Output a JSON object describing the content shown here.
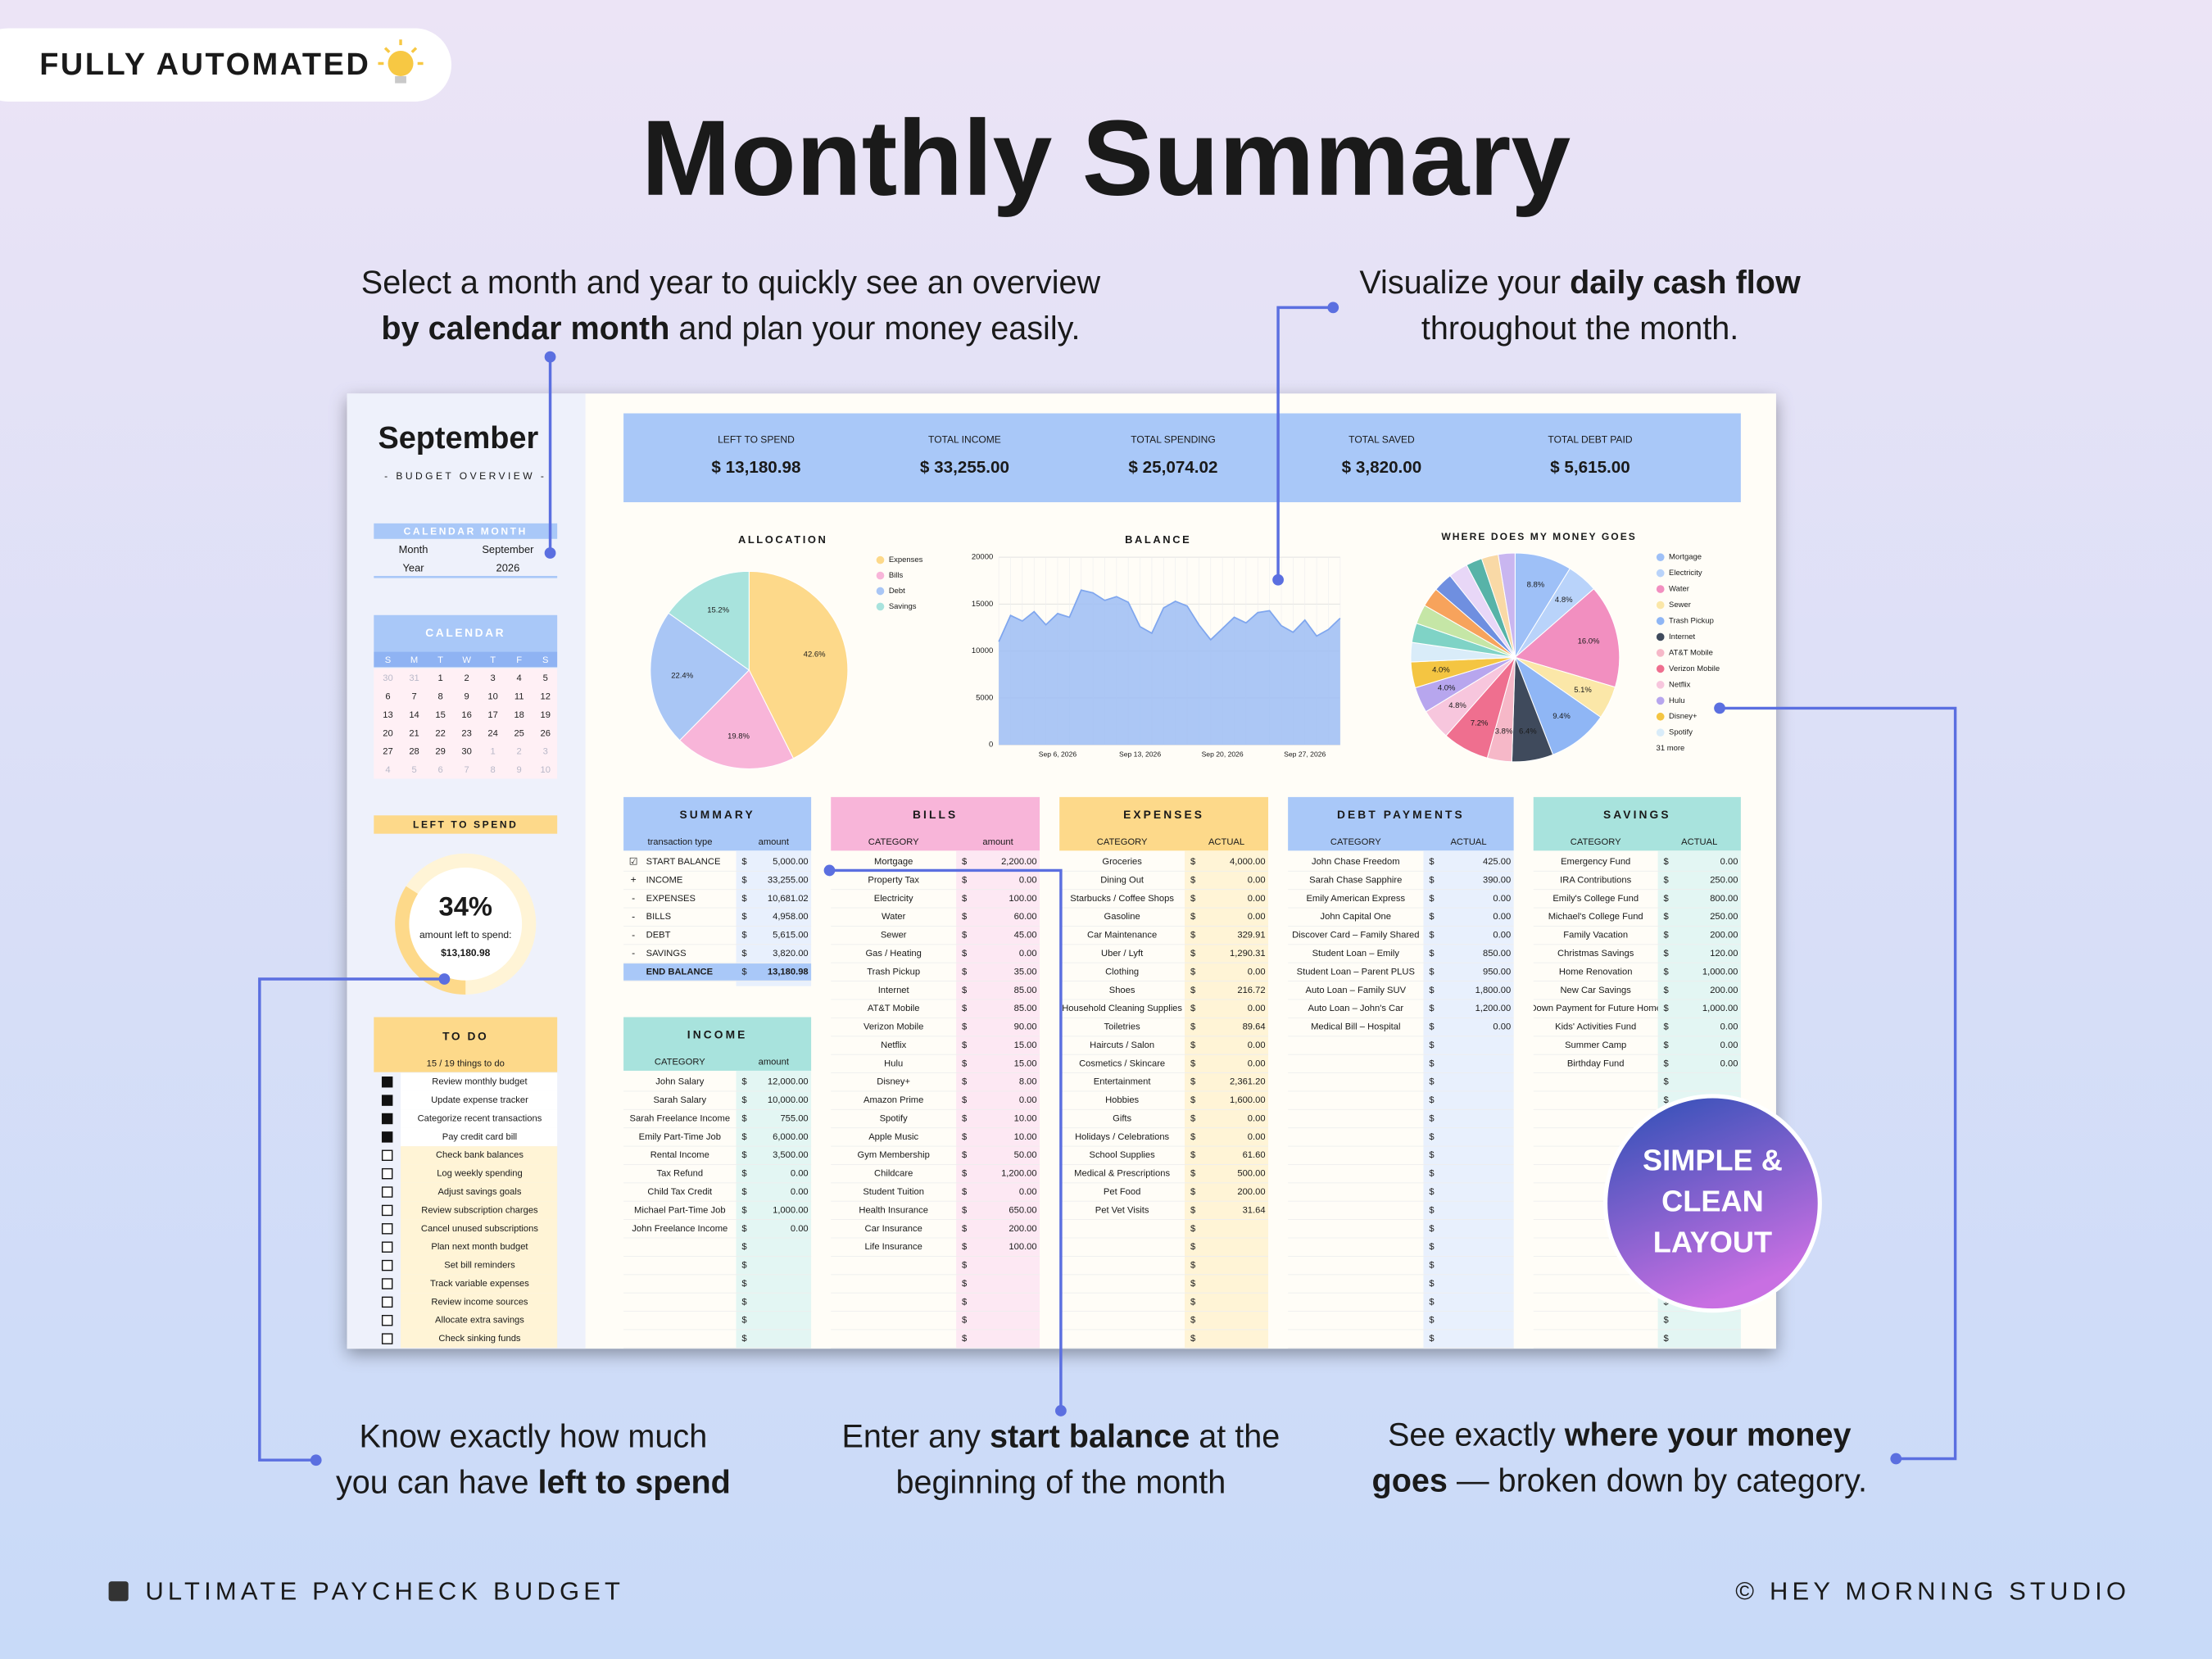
{
  "badge": "FULLY AUTOMATED",
  "title": "Monthly Summary",
  "callouts": [
    {
      "lines": [
        [
          {
            "t": "Select a month and year to quickly see an overview"
          }
        ],
        [
          {
            "t": "by calendar month",
            "b": true
          },
          {
            "t": " and plan your money easily."
          }
        ]
      ]
    },
    {
      "lines": [
        [
          {
            "t": "Visualize your "
          },
          {
            "t": "daily cash flow",
            "b": true
          }
        ],
        [
          {
            "t": "throughout the month."
          }
        ]
      ]
    },
    {
      "lines": [
        [
          {
            "t": "Know exactly how much"
          }
        ],
        [
          {
            "t": "you can have "
          },
          {
            "t": "left to spend",
            "b": true
          }
        ]
      ]
    },
    {
      "lines": [
        [
          {
            "t": "Enter any "
          },
          {
            "t": "start balance",
            "b": true
          },
          {
            "t": " at the"
          }
        ],
        [
          {
            "t": "beginning of the month"
          }
        ]
      ]
    },
    {
      "lines": [
        [
          {
            "t": "See exactly "
          },
          {
            "t": "where your money",
            "b": true
          }
        ],
        [
          {
            "t": "goes",
            "b": true
          },
          {
            "t": " — broken down by category."
          }
        ]
      ]
    }
  ],
  "footer_left": "ULTIMATE PAYCHECK BUDGET",
  "footer_right": "© HEY MORNING STUDIO",
  "sticker": [
    "SIMPLE &",
    "CLEAN",
    "LAYOUT"
  ],
  "sheet": {
    "month_title": "September",
    "subtitle": "- BUDGET OVERVIEW -",
    "calendar_month": {
      "header": "CALENDAR MONTH",
      "rows": [
        [
          "Month",
          "September"
        ],
        [
          "Year",
          "2026"
        ]
      ]
    },
    "calendar": {
      "header": "CALENDAR",
      "weekdays": [
        "S",
        "M",
        "T",
        "W",
        "T",
        "F",
        "S"
      ],
      "weeks": [
        [
          30,
          31,
          1,
          2,
          3,
          4,
          5
        ],
        [
          6,
          7,
          8,
          9,
          10,
          11,
          12
        ],
        [
          13,
          14,
          15,
          16,
          17,
          18,
          19
        ],
        [
          20,
          21,
          22,
          23,
          24,
          25,
          26
        ],
        [
          27,
          28,
          29,
          30,
          1,
          2,
          3
        ],
        [
          4,
          5,
          6,
          7,
          8,
          9,
          10
        ]
      ]
    },
    "left_to_spend": {
      "header": "LEFT TO SPEND",
      "value": 34,
      "value_label": "34%",
      "caption": "amount left to spend:",
      "amount": "$13,180.98"
    },
    "todo": {
      "header": "TO DO",
      "status": "15 / 19 things to do",
      "items": [
        {
          "text": "Review monthly budget",
          "done": true
        },
        {
          "text": "Update expense tracker",
          "done": true
        },
        {
          "text": "Categorize recent transactions",
          "done": true
        },
        {
          "text": "Pay credit card bill",
          "done": true
        },
        {
          "text": "Check bank balances",
          "done": false
        },
        {
          "text": "Log weekly spending",
          "done": false
        },
        {
          "text": "Adjust savings goals",
          "done": false
        },
        {
          "text": "Review subscription charges",
          "done": false
        },
        {
          "text": "Cancel unused subscriptions",
          "done": false
        },
        {
          "text": "Plan next month budget",
          "done": false
        },
        {
          "text": "Set bill reminders",
          "done": false
        },
        {
          "text": "Track variable expenses",
          "done": false
        },
        {
          "text": "Review income sources",
          "done": false
        },
        {
          "text": "Allocate extra savings",
          "done": false
        },
        {
          "text": "Check sinking funds",
          "done": false
        }
      ]
    },
    "kpis": [
      {
        "label": "LEFT TO SPEND",
        "value": "$ 13,180.98"
      },
      {
        "label": "TOTAL INCOME",
        "value": "$ 33,255.00"
      },
      {
        "label": "TOTAL SPENDING",
        "value": "$ 25,074.02"
      },
      {
        "label": "TOTAL SAVED",
        "value": "$ 3,820.00"
      },
      {
        "label": "TOTAL DEBT PAID",
        "value": "$ 5,615.00"
      }
    ],
    "allocation": {
      "type": "pie",
      "title": "ALLOCATION",
      "categories": [
        "Expenses",
        "Bills",
        "Debt",
        "Savings"
      ],
      "values": [
        42.6,
        19.8,
        22.4,
        15.2
      ],
      "value_labels": [
        "42.6%",
        "19.8%",
        "22.4%",
        "15.2%"
      ],
      "colors": [
        "#fdd98a",
        "#f8b5d9",
        "#a9c6f5",
        "#a8e3dd"
      ]
    },
    "balance": {
      "type": "area",
      "title": "BALANCE",
      "color": "#9dbdf5",
      "categories": [
        null,
        null,
        null,
        null,
        null,
        "Sep 6, 2026",
        null,
        null,
        null,
        null,
        null,
        null,
        "Sep 13, 2026",
        null,
        null,
        null,
        null,
        null,
        null,
        "Sep 20, 2026",
        null,
        null,
        null,
        null,
        null,
        null,
        "Sep 27, 2026",
        null,
        null,
        null
      ],
      "values": [
        11000,
        13800,
        13200,
        14200,
        12800,
        14000,
        13600,
        16500,
        16200,
        15400,
        15800,
        15200,
        12600,
        11900,
        14600,
        15300,
        14800,
        12800,
        11200,
        12400,
        13600,
        13000,
        14100,
        14300,
        12700,
        12000,
        13300,
        11600,
        12300,
        13500
      ],
      "ylim": [
        0,
        20000
      ],
      "yticks": [
        0,
        5000,
        10000,
        15000,
        20000
      ],
      "grid": true
    },
    "money": {
      "type": "pie",
      "title": "WHERE DOES MY MONEY GOES",
      "categories": [
        "Mortgage",
        "Electricity",
        "Water",
        "Sewer",
        "Trash Pickup",
        "Internet",
        "AT&T Mobile",
        "Verizon Mobile",
        "Netflix",
        "Hulu",
        "Disney+",
        "Spotify",
        null,
        null,
        null,
        null,
        null,
        null,
        null,
        null
      ],
      "values": [
        8.8,
        4.8,
        16.0,
        5.1,
        9.4,
        6.4,
        3.8,
        7.2,
        4.8,
        4.0,
        4.0,
        3,
        3,
        3,
        3,
        3,
        3,
        2.5,
        2.6,
        2.6
      ],
      "value_labels": [
        "8.8%",
        "4.8%",
        "16.0%",
        "5.1%",
        "9.4%",
        "6.4%",
        "3.8%",
        "7.2%",
        "4.8%",
        "4.0%",
        "4.0%",
        null,
        null,
        null,
        null,
        null,
        null,
        null,
        null,
        null
      ],
      "colors": [
        "#9ec0f7",
        "#b9d3fa",
        "#f28fc0",
        "#fbe7a8",
        "#8fb6f5",
        "#3f4a5c",
        "#f6b8c8",
        "#ef6f8f",
        "#f7c6dd",
        "#b7a6ee",
        "#f4c542",
        "#d9ecf9",
        "#7fd3c6",
        "#c5e6a6",
        "#f7a35c",
        "#6f8fe0",
        "#e8d7f7",
        "#57b3a8",
        "#f9d9a6",
        "#c9b6f0"
      ],
      "more": "31 more"
    },
    "tables": {
      "summary": {
        "header": "SUMMARY",
        "columns": [
          "transaction type",
          "amount"
        ],
        "currency": "$",
        "rows": [
          {
            "mark": "☑",
            "name": "START BALANCE",
            "amount": "5,000.00"
          },
          {
            "mark": "+",
            "name": "INCOME",
            "amount": "33,255.00"
          },
          {
            "mark": "-",
            "name": "EXPENSES",
            "amount": "10,681.02"
          },
          {
            "mark": "-",
            "name": "BILLS",
            "amount": "4,958.00"
          },
          {
            "mark": "-",
            "name": "DEBT",
            "amount": "5,615.00"
          },
          {
            "mark": "-",
            "name": "SAVINGS",
            "amount": "3,820.00"
          },
          {
            "name": "END BALANCE",
            "amount": "13,180.98"
          }
        ]
      },
      "bills": {
        "header": "BILLS",
        "columns": [
          "CATEGORY",
          "amount"
        ],
        "currency": "$",
        "rows": [
          {
            "name": "Mortgage",
            "amount": "2,200.00"
          },
          {
            "name": "Property Tax",
            "amount": "0.00"
          },
          {
            "name": "Electricity",
            "amount": "100.00"
          },
          {
            "name": "Water",
            "amount": "60.00"
          },
          {
            "name": "Sewer",
            "amount": "45.00"
          },
          {
            "name": "Gas / Heating",
            "amount": "0.00"
          },
          {
            "name": "Trash Pickup",
            "amount": "35.00"
          },
          {
            "name": "Internet",
            "amount": "85.00"
          },
          {
            "name": "AT&T Mobile",
            "amount": "85.00"
          },
          {
            "name": "Verizon Mobile",
            "amount": "90.00"
          },
          {
            "name": "Netflix",
            "amount": "15.00"
          },
          {
            "name": "Hulu",
            "amount": "15.00"
          },
          {
            "name": "Disney+",
            "amount": "8.00"
          },
          {
            "name": "Amazon Prime",
            "amount": "0.00"
          },
          {
            "name": "Spotify",
            "amount": "10.00"
          },
          {
            "name": "Apple Music",
            "amount": "10.00"
          },
          {
            "name": "Gym Membership",
            "amount": "50.00"
          },
          {
            "name": "Childcare",
            "amount": "1,200.00"
          },
          {
            "name": "Student Tuition",
            "amount": "0.00"
          },
          {
            "name": "Health Insurance",
            "amount": "650.00"
          },
          {
            "name": "Car Insurance",
            "amount": "200.00"
          },
          {
            "name": "Life Insurance",
            "amount": "100.00"
          }
        ]
      },
      "expenses": {
        "header": "EXPENSES",
        "columns": [
          "CATEGORY",
          "ACTUAL"
        ],
        "currency": "$",
        "rows": [
          {
            "name": "Groceries",
            "amount": "4,000.00"
          },
          {
            "name": "Dining Out",
            "amount": "0.00"
          },
          {
            "name": "Starbucks / Coffee Shops",
            "amount": "0.00"
          },
          {
            "name": "Gasoline",
            "amount": "0.00"
          },
          {
            "name": "Car Maintenance",
            "amount": "329.91"
          },
          {
            "name": "Uber / Lyft",
            "amount": "1,290.31"
          },
          {
            "name": "Clothing",
            "amount": "0.00"
          },
          {
            "name": "Shoes",
            "amount": "216.72"
          },
          {
            "name": "Household Cleaning Supplies",
            "amount": "0.00"
          },
          {
            "name": "Toiletries",
            "amount": "89.64"
          },
          {
            "name": "Haircuts / Salon",
            "amount": "0.00"
          },
          {
            "name": "Cosmetics / Skincare",
            "amount": "0.00"
          },
          {
            "name": "Entertainment",
            "amount": "2,361.20"
          },
          {
            "name": "Hobbies",
            "amount": "1,600.00"
          },
          {
            "name": "Gifts",
            "amount": "0.00"
          },
          {
            "name": "Holidays / Celebrations",
            "amount": "0.00"
          },
          {
            "name": "School Supplies",
            "amount": "61.60"
          },
          {
            "name": "Medical & Prescriptions",
            "amount": "500.00"
          },
          {
            "name": "Pet Food",
            "amount": "200.00"
          },
          {
            "name": "Pet Vet Visits",
            "amount": "31.64"
          }
        ]
      },
      "debt": {
        "header": "DEBT PAYMENTS",
        "columns": [
          "CATEGORY",
          "ACTUAL"
        ],
        "currency": "$",
        "rows": [
          {
            "name": "John Chase Freedom",
            "amount": "425.00"
          },
          {
            "name": "Sarah Chase Sapphire",
            "amount": "390.00"
          },
          {
            "name": "Emily American Express",
            "amount": "0.00"
          },
          {
            "name": "John Capital One",
            "amount": "0.00"
          },
          {
            "name": "Discover Card – Family Shared",
            "amount": "0.00"
          },
          {
            "name": "Student Loan – Emily",
            "amount": "850.00"
          },
          {
            "name": "Student Loan – Parent PLUS",
            "amount": "950.00"
          },
          {
            "name": "Auto Loan – Family SUV",
            "amount": "1,800.00"
          },
          {
            "name": "Auto Loan – John's Car",
            "amount": "1,200.00"
          },
          {
            "name": "Medical Bill – Hospital",
            "amount": "0.00"
          }
        ]
      },
      "savings": {
        "header": "SAVINGS",
        "columns": [
          "CATEGORY",
          "ACTUAL"
        ],
        "currency": "$",
        "rows": [
          {
            "name": "Emergency Fund",
            "amount": "0.00"
          },
          {
            "name": "IRA Contributions",
            "amount": "250.00"
          },
          {
            "name": "Emily's College Fund",
            "amount": "800.00"
          },
          {
            "name": "Michael's College Fund",
            "amount": "250.00"
          },
          {
            "name": "Family Vacation",
            "amount": "200.00"
          },
          {
            "name": "Christmas Savings",
            "amount": "120.00"
          },
          {
            "name": "Home Renovation",
            "amount": "1,000.00"
          },
          {
            "name": "New Car Savings",
            "amount": "200.00"
          },
          {
            "name": "Down Payment for Future Home",
            "amount": "1,000.00"
          },
          {
            "name": "Kids' Activities Fund",
            "amount": "0.00"
          },
          {
            "name": "Summer Camp",
            "amount": "0.00"
          },
          {
            "name": "Birthday Fund",
            "amount": "0.00"
          }
        ]
      },
      "income": {
        "header": "INCOME",
        "columns": [
          "CATEGORY",
          "amount"
        ],
        "currency": "$",
        "rows": [
          {
            "name": "John Salary",
            "amount": "12,000.00"
          },
          {
            "name": "Sarah Salary",
            "amount": "10,000.00"
          },
          {
            "name": "Sarah Freelance Income",
            "amount": "755.00"
          },
          {
            "name": "Emily Part-Time Job",
            "amount": "6,000.00"
          },
          {
            "name": "Rental Income",
            "amount": "3,500.00"
          },
          {
            "name": "Tax Refund",
            "amount": "0.00"
          },
          {
            "name": "Child Tax Credit",
            "amount": "0.00"
          },
          {
            "name": "Michael Part-Time Job",
            "amount": "1,000.00"
          },
          {
            "name": "John Freelance Income",
            "amount": "0.00"
          }
        ]
      }
    }
  }
}
